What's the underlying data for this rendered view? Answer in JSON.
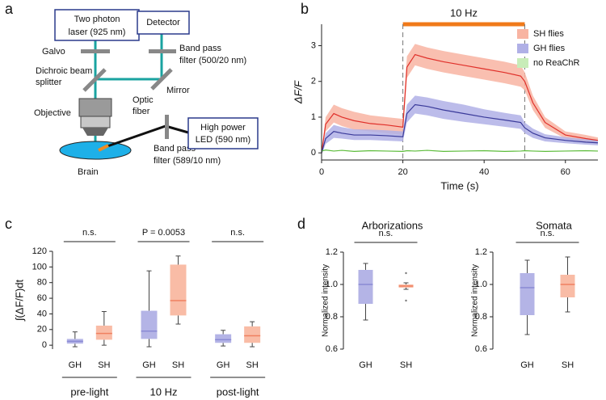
{
  "panel_labels": [
    "a",
    "b",
    "c",
    "d"
  ],
  "diagram": {
    "laser": [
      "Two photon",
      "laser (925 nm)"
    ],
    "detector": "Detector",
    "led": [
      "High power",
      "LED (590 nm)"
    ],
    "galvo": "Galvo",
    "dichroic": [
      "Dichroic beam",
      "splitter"
    ],
    "objective": "Objective",
    "fiber": [
      "Optic",
      "fiber"
    ],
    "brain": "Brain",
    "filter_led": [
      "Band pass",
      "filter (589/10 nm)"
    ],
    "filter_det": [
      "Band pass",
      "filter (500/20 nm)"
    ],
    "mirror": "Mirror"
  },
  "chart_data": [
    {
      "type": "line",
      "xlabel": "Time (s)",
      "ylabel": "ΔF/F",
      "xlim": [
        0,
        68
      ],
      "xticks": [
        0,
        20,
        40,
        60
      ],
      "ylim": [
        -0.2,
        3.6
      ],
      "yticks": [
        0,
        1,
        2,
        3
      ],
      "stimulus": {
        "label": "10 Hz",
        "range": [
          20,
          50
        ],
        "color": "#f07a1a"
      },
      "legend": "top-right",
      "x": [
        0,
        1,
        3,
        5,
        8,
        12,
        16,
        20,
        21,
        23,
        26,
        30,
        35,
        40,
        45,
        49,
        50,
        52,
        55,
        60,
        65,
        68
      ],
      "series": [
        {
          "name": "SH flies",
          "color": "#e0302a",
          "band_color": "#f8b4a2",
          "values": [
            0,
            0.8,
            1.1,
            1.0,
            0.9,
            0.82,
            0.78,
            0.72,
            2.4,
            2.75,
            2.65,
            2.55,
            2.45,
            2.35,
            2.25,
            2.15,
            2.0,
            1.4,
            0.85,
            0.5,
            0.4,
            0.35
          ],
          "lower": [
            -0.05,
            0.6,
            0.85,
            0.75,
            0.65,
            0.6,
            0.55,
            0.5,
            2.1,
            2.45,
            2.35,
            2.25,
            2.15,
            2.05,
            1.95,
            1.85,
            1.75,
            1.2,
            0.7,
            0.4,
            0.3,
            0.27
          ],
          "upper": [
            0.05,
            1.0,
            1.35,
            1.25,
            1.15,
            1.05,
            1.0,
            0.95,
            2.7,
            3.05,
            2.95,
            2.85,
            2.75,
            2.65,
            2.55,
            2.45,
            2.25,
            1.6,
            1.0,
            0.6,
            0.5,
            0.43
          ]
        },
        {
          "name": "GH flies",
          "color": "#3a3a9a",
          "band_color": "#b0b0e6",
          "values": [
            0,
            0.4,
            0.6,
            0.55,
            0.5,
            0.5,
            0.48,
            0.45,
            1.1,
            1.35,
            1.3,
            1.2,
            1.1,
            1.0,
            0.92,
            0.85,
            0.7,
            0.55,
            0.42,
            0.35,
            0.3,
            0.28
          ],
          "lower": [
            -0.05,
            0.25,
            0.42,
            0.4,
            0.36,
            0.36,
            0.34,
            0.32,
            0.85,
            1.1,
            1.05,
            0.95,
            0.87,
            0.8,
            0.73,
            0.67,
            0.55,
            0.42,
            0.32,
            0.27,
            0.23,
            0.21
          ],
          "upper": [
            0.05,
            0.55,
            0.78,
            0.72,
            0.66,
            0.65,
            0.63,
            0.6,
            1.35,
            1.6,
            1.55,
            1.45,
            1.35,
            1.22,
            1.12,
            1.05,
            0.85,
            0.68,
            0.52,
            0.44,
            0.38,
            0.35
          ]
        },
        {
          "name": "no ReaChR",
          "color": "#5cbc3a",
          "band_color": "#c8ecb8",
          "values": [
            0.05,
            0.08,
            0.05,
            0.07,
            0.04,
            0.06,
            0.05,
            0.04,
            0.06,
            0.05,
            0.07,
            0.04,
            0.05,
            0.06,
            0.04,
            0.05,
            0.06,
            0.05,
            0.04,
            0.05,
            0.06,
            0.05
          ]
        }
      ]
    },
    {
      "type": "box",
      "ylabel": "∫(ΔF/F)dt",
      "ylim": [
        -5,
        120
      ],
      "yticks": [
        0,
        20,
        40,
        60,
        80,
        100,
        120
      ],
      "groups": [
        {
          "name": "pre-light",
          "annotation": "n.s.",
          "boxes": [
            {
              "name": "GH",
              "color": "#b4b4e6",
              "median_color": "#8a8ad4",
              "min": -2,
              "q1": 2,
              "median": 5,
              "q3": 8,
              "max": 17
            },
            {
              "name": "SH",
              "color": "#f9bca6",
              "median_color": "#f08060",
              "min": 0,
              "q1": 7,
              "median": 15,
              "q3": 25,
              "max": 43
            }
          ]
        },
        {
          "name": "10 Hz",
          "annotation": "P = 0.0053",
          "boxes": [
            {
              "name": "GH",
              "color": "#b4b4e6",
              "median_color": "#8a8ad4",
              "min": -2,
              "q1": 8,
              "median": 18,
              "q3": 44,
              "max": 95
            },
            {
              "name": "SH",
              "color": "#f9bca6",
              "median_color": "#f08060",
              "min": 27,
              "q1": 38,
              "median": 57,
              "q3": 103,
              "max": 114
            }
          ]
        },
        {
          "name": "post-light",
          "annotation": "n.s.",
          "boxes": [
            {
              "name": "GH",
              "color": "#b4b4e6",
              "median_color": "#8a8ad4",
              "min": -1,
              "q1": 3,
              "median": 7,
              "q3": 14,
              "max": 19
            },
            {
              "name": "SH",
              "color": "#f9bca6",
              "median_color": "#f08060",
              "min": -2,
              "q1": 3,
              "median": 12,
              "q3": 24,
              "max": 30
            }
          ]
        }
      ]
    },
    {
      "type": "box",
      "title": "Arborizations",
      "ylabel": "Normalized intensity",
      "ylim": [
        0.6,
        1.2
      ],
      "yticks": [
        0.6,
        0.8,
        {
          "value": 1.0,
          "label": "1.0"
        },
        1.2
      ],
      "groups": [
        {
          "annotation": "n.s.",
          "boxes": [
            {
              "name": "GH",
              "color": "#b4b4e6",
              "median_color": "#8a8ad4",
              "min": 0.78,
              "q1": 0.88,
              "median": 1.0,
              "q3": 1.09,
              "max": 1.13
            },
            {
              "name": "SH",
              "color": "#f9bca6",
              "median_color": "#f08060",
              "min": 0.97,
              "q1": 0.98,
              "median": 0.99,
              "q3": 1.0,
              "max": 1.01,
              "outliers": [
                1.07,
                0.9
              ]
            }
          ]
        }
      ]
    },
    {
      "type": "box",
      "title": "Somata",
      "ylabel": "Normalized intensity",
      "ylim": [
        0.6,
        1.2
      ],
      "yticks": [
        0.6,
        0.8,
        {
          "value": 1.0,
          "label": "1.0"
        },
        1.2
      ],
      "groups": [
        {
          "annotation": "n.s.",
          "boxes": [
            {
              "name": "GH",
              "color": "#b4b4e6",
              "median_color": "#8a8ad4",
              "min": 0.69,
              "q1": 0.81,
              "median": 0.98,
              "q3": 1.07,
              "max": 1.15
            },
            {
              "name": "SH",
              "color": "#f9bca6",
              "median_color": "#f08060",
              "min": 0.83,
              "q1": 0.92,
              "median": 1.0,
              "q3": 1.06,
              "max": 1.17
            }
          ]
        }
      ]
    }
  ]
}
